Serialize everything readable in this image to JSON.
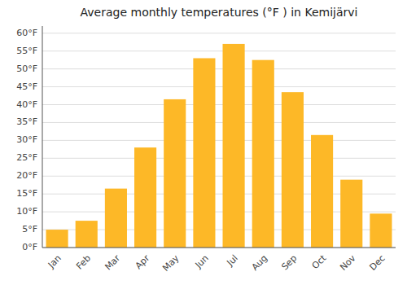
{
  "chart_data": {
    "type": "bar",
    "title": "Average monthly temperatures (°F ) in Kemijärvi",
    "categories": [
      "Jan",
      "Feb",
      "Mar",
      "Apr",
      "May",
      "Jun",
      "Jul",
      "Aug",
      "Sep",
      "Oct",
      "Nov",
      "Dec"
    ],
    "values": [
      5.0,
      7.5,
      16.5,
      28.0,
      41.5,
      53.0,
      57.0,
      52.5,
      43.5,
      31.5,
      19.0,
      9.5
    ],
    "color": "#FDB827",
    "ylim": [
      0,
      62
    ],
    "yticks": [
      {
        "value": 0,
        "label": "0°F"
      },
      {
        "value": 5,
        "label": "5°F"
      },
      {
        "value": 10,
        "label": "10°F"
      },
      {
        "value": 15,
        "label": "15°F"
      },
      {
        "value": 20,
        "label": "20°F"
      },
      {
        "value": 25,
        "label": "25°F"
      },
      {
        "value": 30,
        "label": "30°F"
      },
      {
        "value": 35,
        "label": "35°F"
      },
      {
        "value": 40,
        "label": "40°F"
      },
      {
        "value": 45,
        "label": "45°F"
      },
      {
        "value": 50,
        "label": "50°F"
      },
      {
        "value": 55,
        "label": "55°F"
      },
      {
        "value": 60,
        "label": "60°F"
      }
    ],
    "grid": true
  }
}
